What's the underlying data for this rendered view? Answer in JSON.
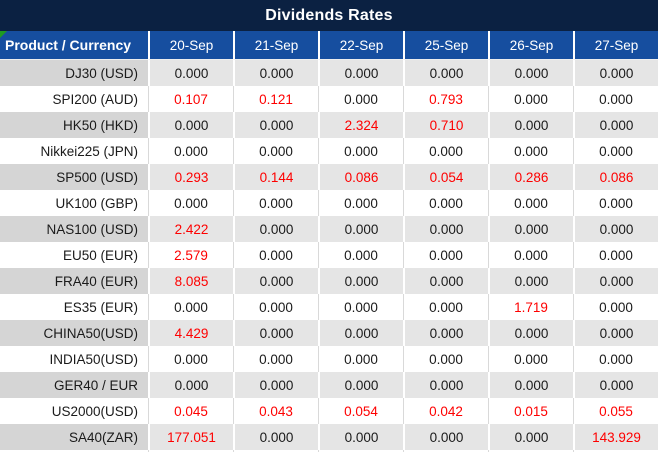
{
  "title": "Dividends Rates",
  "colors": {
    "title_bar_bg": "#0b2142",
    "header_bg": "#164e9f",
    "header_text": "#ffffff",
    "gray_row_label_bg": "#d5d5d5",
    "gray_row_value_bg": "#e5e5e5",
    "white_row_bg": "#ffffff",
    "cell_text": "#1a1a1a",
    "highlight_value_text": "#fe0000",
    "grid_line_gray": "#d9d9d9",
    "grid_line_white": "#ffffff",
    "corner_indicator_green": "#1f9b20"
  },
  "table": {
    "header": {
      "product_col": "Product / Currency",
      "dates": [
        "20-Sep",
        "21-Sep",
        "22-Sep",
        "25-Sep",
        "26-Sep",
        "27-Sep"
      ]
    },
    "rows": [
      {
        "label": "DJ30 (USD)",
        "values": [
          "0.000",
          "0.000",
          "0.000",
          "0.000",
          "0.000",
          "0.000"
        ],
        "red": [
          false,
          false,
          false,
          false,
          false,
          false
        ]
      },
      {
        "label": "SPI200 (AUD)",
        "values": [
          "0.107",
          "0.121",
          "0.000",
          "0.793",
          "0.000",
          "0.000"
        ],
        "red": [
          true,
          true,
          false,
          true,
          false,
          false
        ]
      },
      {
        "label": "HK50 (HKD)",
        "values": [
          "0.000",
          "0.000",
          "2.324",
          "0.710",
          "0.000",
          "0.000"
        ],
        "red": [
          false,
          false,
          true,
          true,
          false,
          false
        ]
      },
      {
        "label": "Nikkei225 (JPN)",
        "values": [
          "0.000",
          "0.000",
          "0.000",
          "0.000",
          "0.000",
          "0.000"
        ],
        "red": [
          false,
          false,
          false,
          false,
          false,
          false
        ]
      },
      {
        "label": "SP500 (USD)",
        "values": [
          "0.293",
          "0.144",
          "0.086",
          "0.054",
          "0.286",
          "0.086"
        ],
        "red": [
          true,
          true,
          true,
          true,
          true,
          true
        ]
      },
      {
        "label": "UK100 (GBP)",
        "values": [
          "0.000",
          "0.000",
          "0.000",
          "0.000",
          "0.000",
          "0.000"
        ],
        "red": [
          false,
          false,
          false,
          false,
          false,
          false
        ]
      },
      {
        "label": "NAS100 (USD)",
        "values": [
          "2.422",
          "0.000",
          "0.000",
          "0.000",
          "0.000",
          "0.000"
        ],
        "red": [
          true,
          false,
          false,
          false,
          false,
          false
        ]
      },
      {
        "label": "EU50 (EUR)",
        "values": [
          "2.579",
          "0.000",
          "0.000",
          "0.000",
          "0.000",
          "0.000"
        ],
        "red": [
          true,
          false,
          false,
          false,
          false,
          false
        ]
      },
      {
        "label": "FRA40 (EUR)",
        "values": [
          "8.085",
          "0.000",
          "0.000",
          "0.000",
          "0.000",
          "0.000"
        ],
        "red": [
          true,
          false,
          false,
          false,
          false,
          false
        ]
      },
      {
        "label": "ES35 (EUR)",
        "values": [
          "0.000",
          "0.000",
          "0.000",
          "0.000",
          "1.719",
          "0.000"
        ],
        "red": [
          false,
          false,
          false,
          false,
          true,
          false
        ]
      },
      {
        "label": "CHINA50(USD)",
        "values": [
          "4.429",
          "0.000",
          "0.000",
          "0.000",
          "0.000",
          "0.000"
        ],
        "red": [
          true,
          false,
          false,
          false,
          false,
          false
        ]
      },
      {
        "label": "INDIA50(USD)",
        "values": [
          "0.000",
          "0.000",
          "0.000",
          "0.000",
          "0.000",
          "0.000"
        ],
        "red": [
          false,
          false,
          false,
          false,
          false,
          false
        ]
      },
      {
        "label": "GER40 / EUR",
        "values": [
          "0.000",
          "0.000",
          "0.000",
          "0.000",
          "0.000",
          "0.000"
        ],
        "red": [
          false,
          false,
          false,
          false,
          false,
          false
        ]
      },
      {
        "label": "US2000(USD)",
        "values": [
          "0.045",
          "0.043",
          "0.054",
          "0.042",
          "0.015",
          "0.055"
        ],
        "red": [
          true,
          true,
          true,
          true,
          true,
          true
        ]
      },
      {
        "label": "SA40(ZAR)",
        "values": [
          "177.051",
          "0.000",
          "0.000",
          "0.000",
          "0.000",
          "143.929"
        ],
        "red": [
          true,
          false,
          false,
          false,
          false,
          true
        ]
      }
    ]
  },
  "chart_data": {
    "type": "table",
    "title": "Dividends Rates",
    "columns": [
      "Product / Currency",
      "20-Sep",
      "21-Sep",
      "22-Sep",
      "25-Sep",
      "26-Sep",
      "27-Sep"
    ],
    "rows": [
      [
        "DJ30 (USD)",
        "0.000",
        "0.000",
        "0.000",
        "0.000",
        "0.000",
        "0.000"
      ],
      [
        "SPI200 (AUD)",
        "0.107",
        "0.121",
        "0.000",
        "0.793",
        "0.000",
        "0.000"
      ],
      [
        "HK50 (HKD)",
        "0.000",
        "0.000",
        "2.324",
        "0.710",
        "0.000",
        "0.000"
      ],
      [
        "Nikkei225 (JPN)",
        "0.000",
        "0.000",
        "0.000",
        "0.000",
        "0.000",
        "0.000"
      ],
      [
        "SP500 (USD)",
        "0.293",
        "0.144",
        "0.086",
        "0.054",
        "0.286",
        "0.086"
      ],
      [
        "UK100 (GBP)",
        "0.000",
        "0.000",
        "0.000",
        "0.000",
        "0.000",
        "0.000"
      ],
      [
        "NAS100 (USD)",
        "2.422",
        "0.000",
        "0.000",
        "0.000",
        "0.000",
        "0.000"
      ],
      [
        "EU50 (EUR)",
        "2.579",
        "0.000",
        "0.000",
        "0.000",
        "0.000",
        "0.000"
      ],
      [
        "FRA40 (EUR)",
        "8.085",
        "0.000",
        "0.000",
        "0.000",
        "0.000",
        "0.000"
      ],
      [
        "ES35 (EUR)",
        "0.000",
        "0.000",
        "0.000",
        "0.000",
        "1.719",
        "0.000"
      ],
      [
        "CHINA50(USD)",
        "4.429",
        "0.000",
        "0.000",
        "0.000",
        "0.000",
        "0.000"
      ],
      [
        "INDIA50(USD)",
        "0.000",
        "0.000",
        "0.000",
        "0.000",
        "0.000",
        "0.000"
      ],
      [
        "GER40 / EUR",
        "0.000",
        "0.000",
        "0.000",
        "0.000",
        "0.000",
        "0.000"
      ],
      [
        "US2000(USD)",
        "0.045",
        "0.043",
        "0.054",
        "0.042",
        "0.015",
        "0.055"
      ],
      [
        "SA40(ZAR)",
        "177.051",
        "0.000",
        "0.000",
        "0.000",
        "0.000",
        "143.929"
      ]
    ],
    "layout_hints": {
      "nonzero_values_color": "#fe0000",
      "alternating_row_shading": true,
      "header_position": "top"
    }
  }
}
